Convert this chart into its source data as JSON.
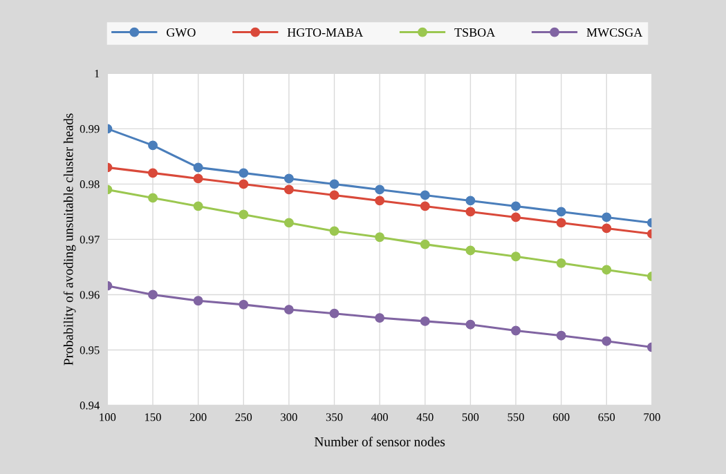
{
  "chart_data": {
    "type": "line",
    "xlabel": "Number of sensor nodes",
    "ylabel": "Probability of avoding unsuitable cluster heads",
    "x": [
      100,
      150,
      200,
      250,
      300,
      350,
      400,
      450,
      500,
      550,
      600,
      650,
      700
    ],
    "series": [
      {
        "name": "GWO",
        "color": "#4a7ebb",
        "values": [
          0.99,
          0.987,
          0.983,
          0.982,
          0.981,
          0.98,
          0.979,
          0.978,
          0.977,
          0.976,
          0.975,
          0.974,
          0.973
        ]
      },
      {
        "name": "HGTO-MABA",
        "color": "#d9493a",
        "values": [
          0.983,
          0.982,
          0.981,
          0.98,
          0.979,
          0.978,
          0.977,
          0.976,
          0.975,
          0.974,
          0.973,
          0.972,
          0.971
        ]
      },
      {
        "name": "TSBOA",
        "color": "#9bc750",
        "values": [
          0.979,
          0.9775,
          0.976,
          0.9745,
          0.973,
          0.9715,
          0.9704,
          0.9691,
          0.968,
          0.9669,
          0.9657,
          0.9645,
          0.9633
        ]
      },
      {
        "name": "MWCSGA",
        "color": "#8064a2",
        "values": [
          0.9616,
          0.96,
          0.9589,
          0.9582,
          0.9573,
          0.9566,
          0.9558,
          0.9552,
          0.9546,
          0.9535,
          0.9526,
          0.9516,
          0.9505
        ]
      }
    ],
    "xlim": [
      100,
      700
    ],
    "xticks": [
      100,
      150,
      200,
      250,
      300,
      350,
      400,
      450,
      500,
      550,
      600,
      650,
      700
    ],
    "ylim": [
      0.94,
      1.0
    ],
    "yticks": [
      0.94,
      0.95,
      0.96,
      0.97,
      0.98,
      0.99,
      {
        "value": 1.0,
        "label": "1"
      }
    ],
    "grid": true,
    "legend": "top",
    "marker": "circle",
    "line_style": "solid"
  }
}
